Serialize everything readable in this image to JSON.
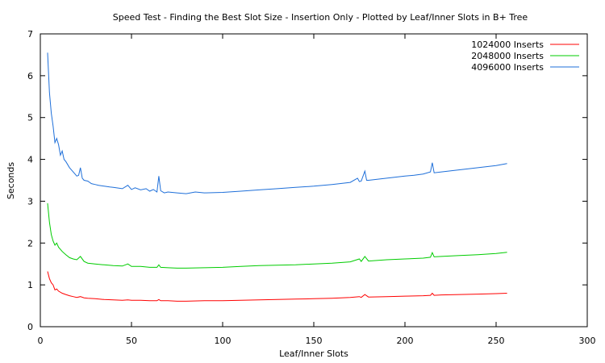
{
  "chart_data": {
    "type": "line",
    "title": "Speed Test - Finding the Best Slot Size - Insertion Only - Plotted by Leaf/Inner Slots in B+ Tree",
    "xlabel": "Leaf/Inner Slots",
    "ylabel": "Seconds",
    "xlim": [
      0,
      300
    ],
    "ylim": [
      0,
      7
    ],
    "xticks": [
      0,
      50,
      100,
      150,
      200,
      250,
      300
    ],
    "yticks": [
      0,
      1,
      2,
      3,
      4,
      5,
      6,
      7
    ],
    "grid": false,
    "legend_position": "top-right",
    "series": [
      {
        "name": "1024000 Inserts",
        "color": "#ff0000",
        "x": [
          4,
          5,
          6,
          7,
          8,
          9,
          10,
          12,
          14,
          16,
          18,
          20,
          22,
          24,
          26,
          30,
          35,
          40,
          45,
          48,
          50,
          55,
          60,
          64,
          65,
          66,
          70,
          75,
          80,
          90,
          100,
          110,
          120,
          130,
          140,
          150,
          160,
          170,
          175,
          176,
          178,
          180,
          190,
          200,
          210,
          214,
          215,
          216,
          220,
          230,
          240,
          250,
          256
        ],
        "y": [
          1.32,
          1.15,
          1.05,
          1.0,
          0.88,
          0.9,
          0.85,
          0.8,
          0.77,
          0.74,
          0.72,
          0.7,
          0.72,
          0.69,
          0.68,
          0.67,
          0.65,
          0.64,
          0.63,
          0.64,
          0.63,
          0.63,
          0.62,
          0.62,
          0.65,
          0.62,
          0.62,
          0.61,
          0.61,
          0.62,
          0.62,
          0.63,
          0.64,
          0.65,
          0.66,
          0.67,
          0.68,
          0.7,
          0.72,
          0.7,
          0.77,
          0.71,
          0.72,
          0.73,
          0.74,
          0.75,
          0.8,
          0.75,
          0.76,
          0.77,
          0.78,
          0.79,
          0.8
        ]
      },
      {
        "name": "2048000 Inserts",
        "color": "#00cc00",
        "x": [
          4,
          5,
          6,
          7,
          8,
          9,
          10,
          12,
          14,
          16,
          18,
          20,
          22,
          24,
          26,
          30,
          35,
          40,
          45,
          48,
          50,
          55,
          60,
          64,
          65,
          66,
          70,
          75,
          80,
          90,
          100,
          110,
          120,
          130,
          140,
          150,
          160,
          170,
          175,
          176,
          178,
          180,
          190,
          200,
          210,
          214,
          215,
          216,
          220,
          230,
          240,
          250,
          256
        ],
        "y": [
          2.95,
          2.5,
          2.2,
          2.05,
          1.95,
          2.0,
          1.9,
          1.8,
          1.72,
          1.65,
          1.62,
          1.6,
          1.68,
          1.56,
          1.52,
          1.5,
          1.48,
          1.46,
          1.45,
          1.5,
          1.44,
          1.44,
          1.42,
          1.42,
          1.48,
          1.42,
          1.41,
          1.4,
          1.4,
          1.41,
          1.42,
          1.44,
          1.46,
          1.47,
          1.48,
          1.5,
          1.52,
          1.55,
          1.62,
          1.56,
          1.68,
          1.57,
          1.6,
          1.62,
          1.64,
          1.66,
          1.77,
          1.67,
          1.68,
          1.7,
          1.72,
          1.75,
          1.78
        ]
      },
      {
        "name": "4096000 Inserts",
        "color": "#1e6fd9",
        "x": [
          4,
          5,
          6,
          7,
          8,
          9,
          10,
          11,
          12,
          13,
          14,
          16,
          18,
          20,
          21,
          22,
          23,
          24,
          26,
          28,
          30,
          32,
          35,
          38,
          40,
          45,
          48,
          50,
          52,
          55,
          58,
          60,
          62,
          64,
          65,
          66,
          68,
          70,
          75,
          80,
          85,
          90,
          100,
          110,
          120,
          130,
          140,
          150,
          160,
          170,
          174,
          175,
          176,
          178,
          179,
          180,
          190,
          200,
          205,
          210,
          214,
          215,
          216,
          220,
          230,
          240,
          250,
          256
        ],
        "y": [
          6.55,
          5.6,
          5.1,
          4.8,
          4.4,
          4.5,
          4.35,
          4.1,
          4.2,
          4.0,
          3.95,
          3.8,
          3.7,
          3.6,
          3.62,
          3.8,
          3.55,
          3.5,
          3.48,
          3.42,
          3.4,
          3.38,
          3.36,
          3.34,
          3.33,
          3.3,
          3.38,
          3.28,
          3.32,
          3.27,
          3.3,
          3.24,
          3.28,
          3.22,
          3.6,
          3.25,
          3.2,
          3.22,
          3.2,
          3.18,
          3.22,
          3.2,
          3.21,
          3.24,
          3.27,
          3.3,
          3.33,
          3.36,
          3.4,
          3.45,
          3.55,
          3.47,
          3.48,
          3.72,
          3.5,
          3.5,
          3.55,
          3.6,
          3.62,
          3.65,
          3.7,
          3.92,
          3.68,
          3.7,
          3.75,
          3.8,
          3.85,
          3.9
        ]
      }
    ]
  }
}
